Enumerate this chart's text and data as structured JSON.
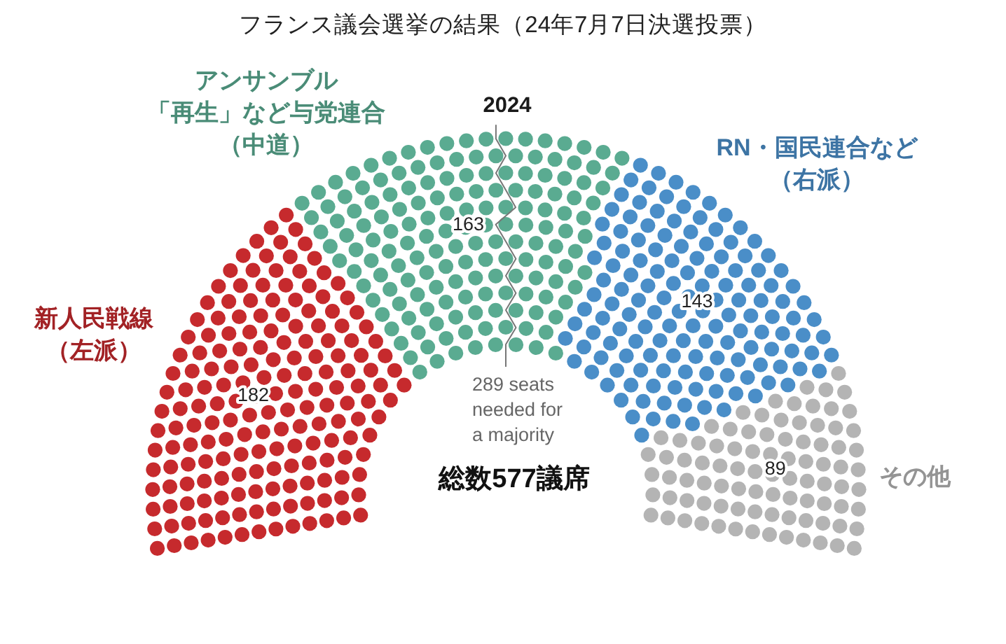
{
  "chart_data": {
    "type": "other",
    "title": "フランス議会選挙の結果（24年7月7日決選投票）",
    "subtitle": "2024",
    "categories": [
      "新人民戦線（左派）",
      "アンサンブル「再生」など与党連合（中道）",
      "RN・国民連合など（右派）",
      "その他"
    ],
    "values": [
      182,
      163,
      143,
      89
    ],
    "colors": [
      "#c62a2d",
      "#5aab91",
      "#4a8ec8",
      "#b4b4b4"
    ],
    "data_labels": true,
    "annotations": [
      "289 seats needed for a majority",
      "総数577議席"
    ]
  }
}
